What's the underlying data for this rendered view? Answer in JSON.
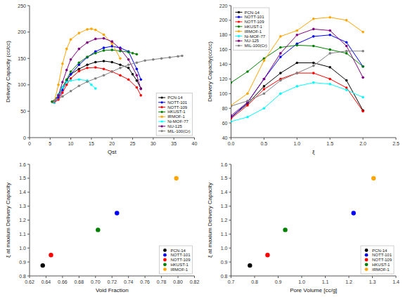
{
  "chart_data": [
    {
      "type": "line",
      "x_label": "Qst",
      "y_label": "Delivery Capacity (cc/cc)",
      "xlim": [
        0,
        40
      ],
      "ylim": [
        0,
        250
      ],
      "xticks": [
        0,
        5,
        10,
        15,
        20,
        25,
        30,
        35,
        40
      ],
      "yticks": [
        0,
        50,
        100,
        150,
        200,
        250
      ],
      "legend": "lower right",
      "marker": "circle",
      "series": [
        {
          "name": "PCN-14",
          "color": "black",
          "x": [
            5.5,
            7,
            8,
            9,
            10,
            12,
            14,
            16,
            18,
            20,
            22,
            24,
            25,
            26,
            27
          ],
          "values": [
            68,
            80,
            95,
            108,
            120,
            130,
            138,
            143,
            145,
            143,
            138,
            132,
            120,
            108,
            93
          ]
        },
        {
          "name": "NOTT-101",
          "color": "blue",
          "x": [
            6,
            7,
            8,
            9,
            10,
            12,
            14,
            16,
            18,
            20,
            22,
            24,
            26,
            27
          ],
          "values": [
            67,
            75,
            90,
            108,
            120,
            138,
            152,
            163,
            170,
            173,
            170,
            163,
            130,
            110
          ]
        },
        {
          "name": "NOTT-109",
          "color": "red",
          "x": [
            6,
            7,
            8,
            9,
            10,
            12,
            14,
            16,
            18,
            20,
            22,
            24,
            26,
            27
          ],
          "values": [
            66,
            72,
            85,
            100,
            112,
            126,
            132,
            133,
            130,
            125,
            118,
            110,
            95,
            80
          ]
        },
        {
          "name": "HKUST-1",
          "color": "#008000",
          "x": [
            5.5,
            7,
            8,
            9,
            10,
            12,
            14,
            16,
            18,
            20,
            22,
            24,
            25,
            26
          ],
          "values": [
            68,
            80,
            95,
            110,
            125,
            142,
            153,
            160,
            165,
            166,
            164,
            162,
            160,
            158
          ]
        },
        {
          "name": "IRMOF-1",
          "color": "orange",
          "x": [
            6,
            7,
            8,
            9,
            10,
            12,
            14,
            15,
            16,
            18,
            20,
            22
          ],
          "values": [
            68,
            100,
            140,
            168,
            186,
            198,
            205,
            206,
            204,
            195,
            178,
            150
          ]
        },
        {
          "name": "Ni-MOF-77",
          "color": "cyan",
          "x": [
            6,
            7,
            8,
            9,
            10,
            12,
            14,
            15,
            16
          ],
          "values": [
            66,
            82,
            95,
            105,
            108,
            110,
            108,
            100,
            93
          ]
        },
        {
          "name": "NU-125",
          "color": "purple",
          "x": [
            6,
            7,
            8,
            9,
            10,
            12,
            14,
            16,
            18,
            20,
            22,
            24,
            26,
            27
          ],
          "values": [
            68,
            80,
            105,
            128,
            148,
            168,
            180,
            187,
            188,
            182,
            168,
            148,
            118,
            92
          ]
        },
        {
          "name": "MIL-100(Cr)",
          "color": "#808080",
          "x": [
            6,
            8,
            10,
            12,
            14,
            16,
            18,
            20,
            22,
            24,
            26,
            28,
            30,
            32,
            34,
            36,
            37
          ],
          "values": [
            68,
            78,
            88,
            98,
            106,
            112,
            118,
            125,
            132,
            138,
            142,
            146,
            148,
            150,
            152,
            154,
            155
          ]
        }
      ]
    },
    {
      "type": "line",
      "x_label": "ξ",
      "y_label": "Delivery Capacity(cc/cc)",
      "xlim": [
        0.0,
        2.5
      ],
      "ylim": [
        40,
        220
      ],
      "xticks": [
        {
          "value": 0.0,
          "label": "0.0"
        },
        0.5,
        {
          "value": 1.0,
          "label": "1.0"
        },
        1.5,
        {
          "value": 2.0,
          "label": "2.0"
        },
        2.5
      ],
      "yticks": [
        40,
        60,
        80,
        100,
        120,
        140,
        160,
        180,
        200,
        220
      ],
      "legend": "upper left",
      "marker": "circle",
      "series": [
        {
          "name": "PCN-14",
          "color": "black",
          "x": [
            0.0,
            0.25,
            0.5,
            0.75,
            1.0,
            1.25,
            1.5,
            1.75,
            2.0
          ],
          "values": [
            68,
            86,
            110,
            128,
            142,
            142,
            136,
            118,
            77
          ]
        },
        {
          "name": "NOTT-101",
          "color": "blue",
          "x": [
            0.0,
            0.25,
            0.5,
            0.75,
            1.0,
            1.25,
            1.5,
            1.75,
            2.0
          ],
          "values": [
            67,
            88,
            120,
            150,
            168,
            178,
            180,
            170,
            137
          ]
        },
        {
          "name": "NOTT-109",
          "color": "red",
          "x": [
            0.0,
            0.25,
            0.5,
            0.75,
            1.0,
            1.25,
            1.5,
            1.75,
            2.0
          ],
          "values": [
            66,
            84,
            106,
            120,
            128,
            128,
            120,
            108,
            76
          ]
        },
        {
          "name": "HKUST-1",
          "color": "#008000",
          "x": [
            0.0,
            0.25,
            0.5,
            0.75,
            1.0,
            1.25,
            1.5,
            1.75,
            2.0
          ],
          "values": [
            115,
            130,
            148,
            163,
            166,
            165,
            160,
            155,
            137
          ]
        },
        {
          "name": "IRMOF-1",
          "color": "orange",
          "x": [
            0.0,
            0.25,
            0.5,
            0.75,
            1.0,
            1.25,
            1.5,
            1.75,
            2.0
          ],
          "values": [
            84,
            100,
            145,
            178,
            186,
            202,
            204,
            200,
            184
          ]
        },
        {
          "name": "Ni-MOF-77",
          "color": "cyan",
          "x": [
            0.0,
            0.25,
            0.5,
            0.75,
            1.0,
            1.25,
            1.5,
            1.75,
            2.0
          ],
          "values": [
            62,
            68,
            80,
            100,
            110,
            115,
            113,
            105,
            95
          ]
        },
        {
          "name": "NU-125",
          "color": "purple",
          "x": [
            0.0,
            0.25,
            0.5,
            0.75,
            1.0,
            1.25,
            1.5,
            1.75,
            2.0
          ],
          "values": [
            70,
            88,
            120,
            155,
            180,
            188,
            186,
            165,
            122
          ]
        },
        {
          "name": "MIL-100(Cr)",
          "color": "#808080",
          "x": [
            0.0,
            0.25,
            0.5,
            0.75,
            1.0,
            1.25,
            1.5,
            1.75,
            2.0
          ],
          "values": [
            83,
            90,
            100,
            118,
            128,
            138,
            155,
            158,
            158
          ]
        }
      ]
    },
    {
      "type": "scatter",
      "x_label": "Void Fraction",
      "y_label": "ξ at maxium Delivery Capacity",
      "xlim": [
        0.62,
        0.82
      ],
      "ylim": [
        0.8,
        1.6
      ],
      "xticks": [
        0.62,
        0.64,
        0.66,
        0.68,
        {
          "value": 0.7,
          "label": "0.70"
        },
        0.72,
        0.74,
        0.76,
        0.78,
        {
          "value": 0.8,
          "label": "0.80"
        },
        0.82
      ],
      "yticks": [
        0.8,
        0.9,
        {
          "value": 1.0,
          "label": "1.0"
        },
        1.1,
        1.2,
        1.3,
        1.4,
        1.5,
        1.6
      ],
      "legend": "lower right",
      "series": [
        {
          "name": "PCN-14",
          "color": "black",
          "x": [
            0.636
          ],
          "values": [
            0.875
          ]
        },
        {
          "name": "NOTT-101",
          "color": "blue",
          "x": [
            0.726
          ],
          "values": [
            1.25
          ]
        },
        {
          "name": "NOTT-109",
          "color": "red",
          "x": [
            0.646
          ],
          "values": [
            0.95
          ]
        },
        {
          "name": "HKUST-1",
          "color": "#008000",
          "x": [
            0.703
          ],
          "values": [
            1.13
          ]
        },
        {
          "name": "IRMOF-1",
          "color": "orange",
          "x": [
            0.798
          ],
          "values": [
            1.5
          ]
        }
      ]
    },
    {
      "type": "scatter",
      "x_label": "Pore Volume [cc/g]",
      "y_label": "ξ at maxium Delivery Capacity",
      "xlim": [
        0.7,
        1.4
      ],
      "ylim": [
        0.8,
        1.6
      ],
      "xticks": [
        0.7,
        0.8,
        0.9,
        {
          "value": 1.0,
          "label": "1.0"
        },
        1.1,
        1.2,
        1.3,
        1.4
      ],
      "yticks": [
        0.8,
        0.9,
        {
          "value": 1.0,
          "label": "1.0"
        },
        1.1,
        1.2,
        1.3,
        1.4,
        1.5,
        1.6
      ],
      "legend": "lower right",
      "series": [
        {
          "name": "PCN-14",
          "color": "black",
          "x": [
            0.78
          ],
          "values": [
            0.875
          ]
        },
        {
          "name": "NOTT-101",
          "color": "blue",
          "x": [
            1.22
          ],
          "values": [
            1.25
          ]
        },
        {
          "name": "NOTT-109",
          "color": "red",
          "x": [
            0.855
          ],
          "values": [
            0.95
          ]
        },
        {
          "name": "HKUST-1",
          "color": "#008000",
          "x": [
            0.93
          ],
          "values": [
            1.13
          ]
        },
        {
          "name": "IRMOF-1",
          "color": "orange",
          "x": [
            1.305
          ],
          "values": [
            1.5
          ]
        }
      ]
    }
  ]
}
